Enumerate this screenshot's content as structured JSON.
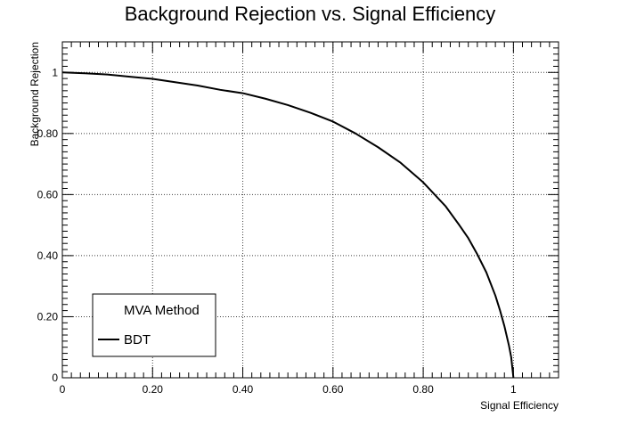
{
  "chart_data": {
    "type": "line",
    "title": "Background Rejection vs. Signal Efficiency",
    "xlabel": "Signal Efficiency",
    "ylabel": "Background Rejection",
    "xlim": [
      0,
      1.1
    ],
    "ylim": [
      0,
      1.1
    ],
    "grid": true,
    "legend_position": "bottom-left",
    "legend_title": "MVA Method",
    "x_ticks": [
      0,
      0.2,
      0.4,
      0.6,
      0.8,
      1
    ],
    "x_tick_labels": [
      "0",
      "0.20",
      "0.40",
      "0.60",
      "0.80",
      "1"
    ],
    "y_ticks": [
      0,
      0.2,
      0.4,
      0.6,
      0.8,
      1
    ],
    "y_tick_labels": [
      "0",
      "0.20",
      "0.40",
      "0.60",
      "0.80",
      "1"
    ],
    "series": [
      {
        "name": "BDT",
        "color": "#000000",
        "x": [
          0,
          0.05,
          0.1,
          0.15,
          0.2,
          0.25,
          0.3,
          0.35,
          0.4,
          0.45,
          0.5,
          0.55,
          0.6,
          0.65,
          0.7,
          0.75,
          0.8,
          0.85,
          0.88,
          0.9,
          0.92,
          0.94,
          0.96,
          0.97,
          0.98,
          0.99,
          0.995,
          1.0
        ],
        "y": [
          1.0,
          0.997,
          0.993,
          0.986,
          0.979,
          0.968,
          0.957,
          0.943,
          0.932,
          0.914,
          0.893,
          0.868,
          0.839,
          0.8,
          0.755,
          0.704,
          0.64,
          0.561,
          0.5,
          0.457,
          0.404,
          0.345,
          0.269,
          0.222,
          0.169,
          0.106,
          0.068,
          0.0
        ]
      }
    ]
  }
}
